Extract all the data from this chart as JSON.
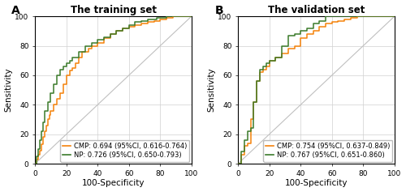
{
  "panel_A": {
    "title": "The training set",
    "label": "A",
    "cmp_label": "CMP: 0.694 (95%CI, 0.616-0.764)",
    "np_label": "NP: 0.726 (95%CI, 0.650-0.793)",
    "cmp_color": "#F5820A",
    "np_color": "#3A7A2A",
    "cmp_x": [
      0,
      1,
      1,
      2,
      2,
      3,
      3,
      4,
      4,
      5,
      5,
      6,
      6,
      7,
      7,
      8,
      8,
      9,
      9,
      10,
      10,
      12,
      12,
      14,
      14,
      16,
      16,
      18,
      18,
      20,
      20,
      22,
      22,
      24,
      24,
      26,
      26,
      28,
      28,
      30,
      30,
      34,
      34,
      36,
      36,
      40,
      40,
      44,
      44,
      48,
      48,
      52,
      52,
      56,
      56,
      60,
      60,
      64,
      64,
      68,
      68,
      72,
      72,
      76,
      76,
      80,
      80,
      84,
      84,
      88,
      88,
      92,
      92,
      96,
      96,
      100
    ],
    "cmp_y": [
      0,
      0,
      3,
      3,
      6,
      6,
      9,
      9,
      13,
      13,
      18,
      18,
      22,
      22,
      26,
      26,
      30,
      30,
      33,
      33,
      36,
      36,
      40,
      40,
      44,
      44,
      48,
      48,
      54,
      54,
      60,
      60,
      63,
      63,
      65,
      65,
      68,
      68,
      72,
      72,
      76,
      76,
      78,
      78,
      80,
      80,
      82,
      82,
      85,
      85,
      88,
      88,
      90,
      90,
      92,
      92,
      93,
      93,
      94,
      94,
      95,
      95,
      96,
      96,
      97,
      97,
      98,
      98,
      99,
      99,
      100,
      100,
      100,
      100,
      100,
      100
    ],
    "np_x": [
      0,
      1,
      1,
      2,
      2,
      3,
      3,
      4,
      4,
      5,
      5,
      6,
      6,
      8,
      8,
      10,
      10,
      12,
      12,
      14,
      14,
      16,
      16,
      18,
      18,
      20,
      20,
      22,
      22,
      24,
      24,
      28,
      28,
      32,
      32,
      36,
      36,
      40,
      40,
      44,
      44,
      48,
      48,
      52,
      52,
      56,
      56,
      60,
      60,
      64,
      64,
      68,
      68,
      72,
      72,
      78,
      78,
      84,
      84,
      90,
      90,
      96,
      96,
      100
    ],
    "np_y": [
      0,
      0,
      5,
      5,
      10,
      10,
      16,
      16,
      22,
      22,
      28,
      28,
      36,
      36,
      42,
      42,
      48,
      48,
      54,
      54,
      60,
      60,
      64,
      64,
      66,
      66,
      68,
      68,
      70,
      70,
      72,
      72,
      76,
      76,
      80,
      80,
      82,
      82,
      84,
      84,
      86,
      86,
      88,
      88,
      90,
      90,
      92,
      92,
      94,
      94,
      96,
      96,
      97,
      97,
      98,
      98,
      99,
      99,
      100,
      100,
      100,
      100,
      100,
      100
    ]
  },
  "panel_B": {
    "title": "The validation set",
    "label": "B",
    "cmp_label": "CMP: 0.754 (95%CI, 0.637-0.849)",
    "np_label": "NP: 0.767 (95%CI, 0.651-0.860)",
    "cmp_color": "#F5820A",
    "np_color": "#3A7A2A",
    "cmp_x": [
      0,
      2,
      2,
      4,
      4,
      6,
      6,
      8,
      8,
      10,
      10,
      12,
      12,
      14,
      14,
      16,
      16,
      18,
      18,
      20,
      20,
      24,
      24,
      28,
      28,
      32,
      32,
      36,
      36,
      40,
      40,
      44,
      44,
      48,
      48,
      52,
      52,
      56,
      56,
      60,
      60,
      64,
      64,
      68,
      68,
      72,
      72,
      76,
      76,
      80,
      80,
      88,
      88,
      96,
      96,
      100
    ],
    "cmp_y": [
      0,
      0,
      6,
      6,
      12,
      12,
      14,
      14,
      30,
      30,
      42,
      42,
      56,
      56,
      62,
      62,
      64,
      64,
      66,
      66,
      70,
      70,
      72,
      72,
      75,
      75,
      78,
      78,
      80,
      80,
      85,
      85,
      88,
      88,
      90,
      90,
      93,
      93,
      95,
      95,
      96,
      96,
      97,
      97,
      98,
      98,
      99,
      99,
      100,
      100,
      100,
      100,
      100,
      100,
      100,
      100
    ],
    "np_x": [
      0,
      2,
      2,
      4,
      4,
      6,
      6,
      8,
      8,
      10,
      10,
      12,
      12,
      14,
      14,
      16,
      16,
      18,
      18,
      20,
      20,
      24,
      24,
      28,
      28,
      32,
      32,
      36,
      36,
      40,
      40,
      44,
      44,
      48,
      48,
      52,
      52,
      56,
      56,
      60,
      60,
      64,
      64,
      68,
      68,
      72,
      72,
      100
    ],
    "np_y": [
      0,
      0,
      8,
      8,
      16,
      16,
      22,
      22,
      24,
      24,
      42,
      42,
      56,
      56,
      64,
      64,
      66,
      66,
      68,
      68,
      70,
      70,
      72,
      72,
      80,
      80,
      87,
      87,
      88,
      88,
      90,
      90,
      92,
      92,
      95,
      95,
      97,
      97,
      100,
      100,
      100,
      100,
      100,
      100,
      100,
      100,
      100,
      100
    ]
  },
  "xlabel": "100-Specificity",
  "ylabel": "Sensitivity",
  "xlim": [
    0,
    100
  ],
  "ylim": [
    0,
    100
  ],
  "xticks": [
    0,
    20,
    40,
    60,
    80,
    100
  ],
  "yticks": [
    0,
    20,
    40,
    60,
    80,
    100
  ],
  "grid_color": "#d0d0d0",
  "diag_color": "#c0c0c0",
  "bg_color": "#ffffff",
  "legend_fontsize": 6.0,
  "axis_label_fontsize": 7.5,
  "tick_fontsize": 6.5,
  "title_fontsize": 8.5,
  "panel_label_fontsize": 10
}
